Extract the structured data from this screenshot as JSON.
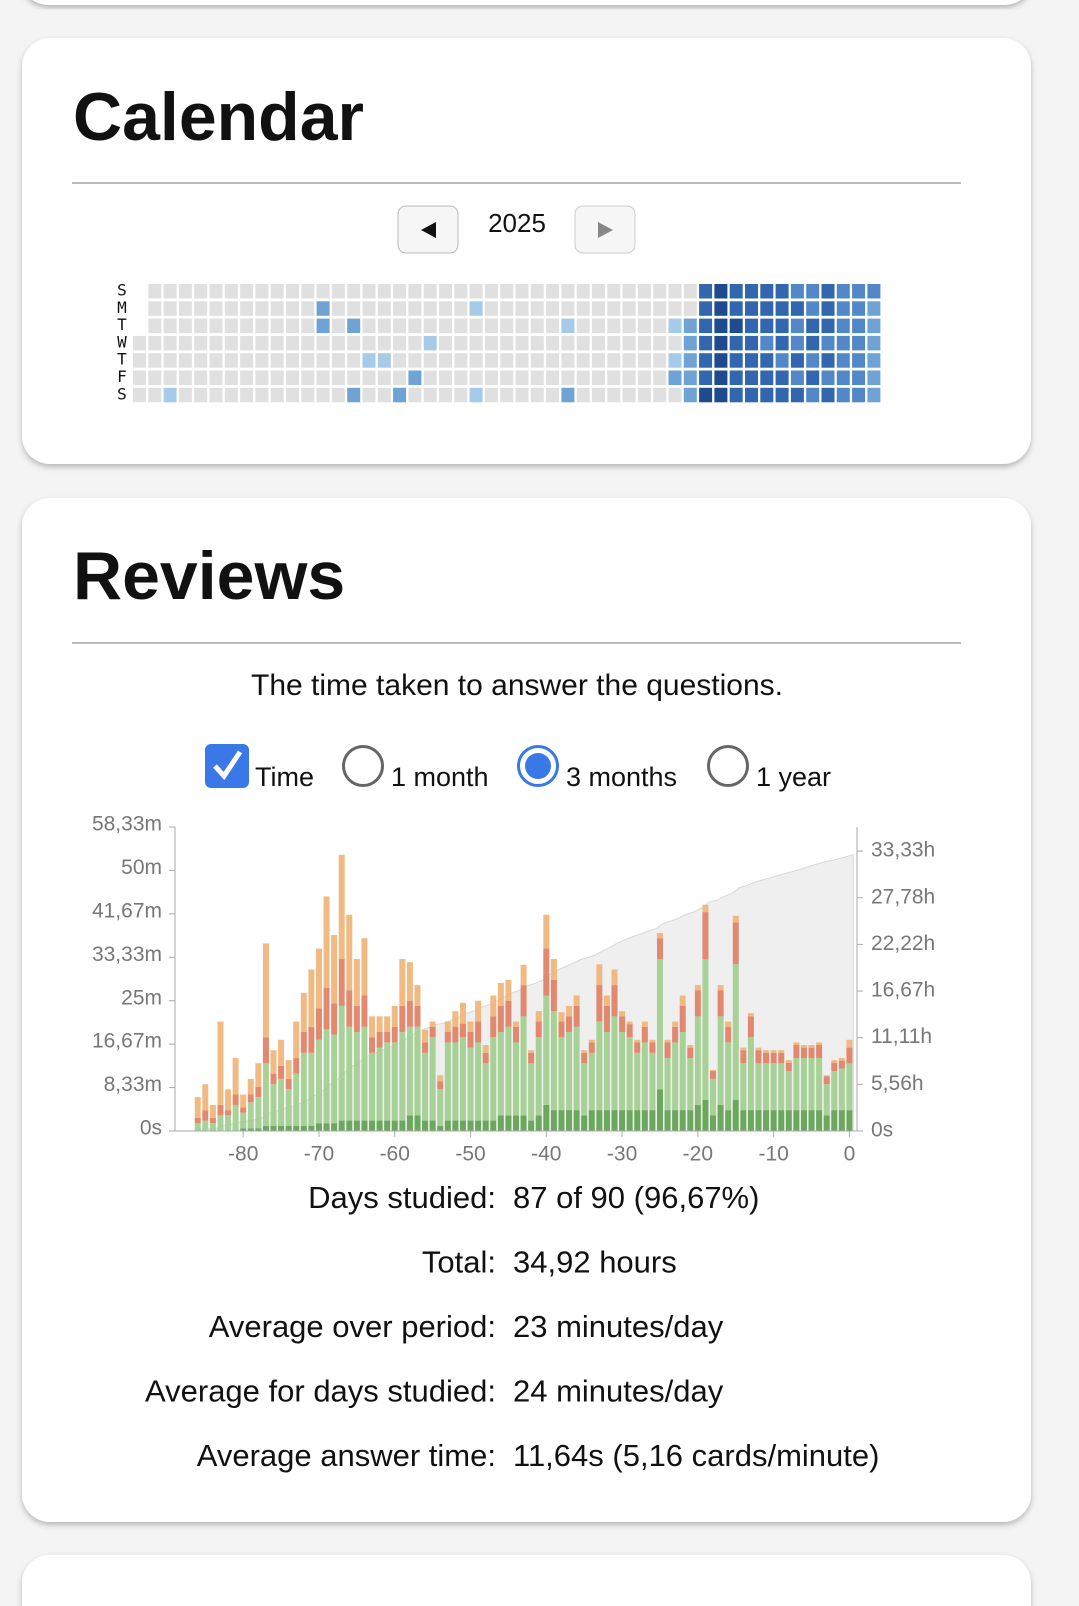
{
  "cards": [
    {
      "title": "Calendar"
    },
    {
      "title": "Reviews",
      "description": "The time taken to answer the questions.",
      "controls": [
        {
          "label": "Time",
          "type": "checkbox",
          "checked": true
        },
        {
          "label": "1 month",
          "type": "radio",
          "checked": false
        },
        {
          "label": "3 months",
          "type": "radio",
          "checked": true
        },
        {
          "label": "1 year",
          "type": "radio",
          "checked": false
        }
      ],
      "stats": [
        [
          "Days studied:",
          "87 of 90 (96,67%)"
        ],
        [
          "Total:",
          "34,92 hours"
        ],
        [
          "Average over period:",
          "23 minutes/day"
        ],
        [
          "Average for days studied:",
          "24 minutes/day"
        ],
        [
          "Average answer time:",
          "11,64s (5,16 cards/minute)"
        ]
      ]
    }
  ],
  "chart_data": [
    {
      "type": "heatmap",
      "year": 2025,
      "row_labels": [
        "S",
        "M",
        "T",
        "W",
        "T",
        "F",
        "S"
      ],
      "colors": [
        "#e0e0e0",
        "#a6cbe8",
        "#6fa3d6",
        "#5288c8",
        "#3266ae",
        "#1e4a8e"
      ],
      "levels": [
        [
          null,
          0,
          0,
          0,
          0,
          0,
          0,
          0,
          0,
          0,
          0,
          0,
          0,
          0,
          0,
          0,
          0,
          0,
          0,
          0,
          0,
          0,
          0,
          0,
          0,
          0,
          0,
          0,
          0,
          0,
          0,
          0,
          0,
          0,
          0,
          0,
          0,
          4,
          5,
          4,
          4,
          4,
          4,
          3,
          3,
          4,
          3,
          3,
          3
        ],
        [
          null,
          0,
          0,
          0,
          0,
          0,
          0,
          0,
          0,
          0,
          0,
          0,
          2,
          0,
          0,
          0,
          0,
          0,
          0,
          0,
          0,
          0,
          1,
          0,
          0,
          0,
          0,
          0,
          0,
          0,
          0,
          0,
          0,
          0,
          0,
          0,
          0,
          4,
          5,
          4,
          4,
          4,
          4,
          4,
          3,
          4,
          3,
          3,
          2
        ],
        [
          null,
          0,
          0,
          0,
          0,
          0,
          0,
          0,
          0,
          0,
          0,
          0,
          2,
          0,
          2,
          0,
          0,
          0,
          0,
          0,
          0,
          0,
          0,
          0,
          0,
          0,
          0,
          0,
          1,
          0,
          0,
          0,
          0,
          0,
          0,
          1,
          2,
          4,
          5,
          5,
          4,
          4,
          4,
          3,
          4,
          4,
          3,
          3,
          2
        ],
        [
          0,
          0,
          0,
          0,
          0,
          0,
          0,
          0,
          0,
          0,
          0,
          0,
          0,
          0,
          0,
          0,
          0,
          0,
          0,
          1,
          0,
          0,
          0,
          0,
          0,
          0,
          0,
          0,
          0,
          0,
          0,
          0,
          0,
          0,
          0,
          0,
          2,
          4,
          5,
          4,
          4,
          3,
          4,
          3,
          4,
          3,
          3,
          3,
          2
        ],
        [
          0,
          0,
          0,
          0,
          0,
          0,
          0,
          0,
          0,
          0,
          0,
          0,
          0,
          0,
          0,
          1,
          1,
          0,
          0,
          0,
          0,
          0,
          0,
          0,
          0,
          0,
          0,
          0,
          0,
          0,
          0,
          0,
          0,
          0,
          0,
          1,
          2,
          4,
          5,
          4,
          4,
          4,
          3,
          4,
          3,
          4,
          3,
          3,
          2
        ],
        [
          0,
          0,
          0,
          0,
          0,
          0,
          0,
          0,
          0,
          0,
          0,
          0,
          0,
          0,
          0,
          0,
          0,
          0,
          2,
          0,
          0,
          0,
          0,
          0,
          0,
          0,
          0,
          0,
          0,
          0,
          0,
          0,
          0,
          0,
          0,
          2,
          2,
          4,
          5,
          4,
          4,
          4,
          4,
          3,
          4,
          3,
          3,
          3,
          2
        ],
        [
          0,
          0,
          1,
          0,
          0,
          0,
          0,
          0,
          0,
          0,
          0,
          0,
          0,
          0,
          2,
          0,
          0,
          2,
          0,
          0,
          0,
          0,
          1,
          0,
          0,
          0,
          0,
          0,
          2,
          0,
          0,
          0,
          0,
          0,
          0,
          0,
          2,
          5,
          5,
          4,
          4,
          4,
          4,
          4,
          3,
          4,
          3,
          3,
          2
        ]
      ]
    },
    {
      "type": "bar",
      "stacked": true,
      "x": [
        -86,
        -85,
        -84,
        -83,
        -82,
        -81,
        -80,
        -79,
        -78,
        -77,
        -76,
        -75,
        -74,
        -73,
        -72,
        -71,
        -70,
        -69,
        -68,
        -67,
        -66,
        -65,
        -64,
        -63,
        -62,
        -61,
        -60,
        -59,
        -58,
        -57,
        -56,
        -55,
        -54,
        -53,
        -52,
        -51,
        -50,
        -49,
        -48,
        -47,
        -46,
        -45,
        -44,
        -43,
        -42,
        -41,
        -40,
        -39,
        -38,
        -37,
        -36,
        -35,
        -34,
        -33,
        -32,
        -31,
        -30,
        -29,
        -28,
        -27,
        -26,
        -25,
        -24,
        -23,
        -22,
        -21,
        -20,
        -19,
        -18,
        -17,
        -16,
        -15,
        -14,
        -13,
        -12,
        -11,
        -10,
        -9,
        -8,
        -7,
        -6,
        -5,
        -4,
        -3,
        -2,
        -1,
        0
      ],
      "xlim": [
        -89,
        1
      ],
      "xticks": [
        -80,
        -70,
        -60,
        -50,
        -40,
        -30,
        -20,
        -10,
        0
      ],
      "ylim": [
        0,
        58.333
      ],
      "yticks": [
        {
          "value": 0,
          "label": "0s"
        },
        {
          "value": 8.333,
          "label": "8,33m"
        },
        {
          "value": 16.667,
          "label": "16,67m"
        },
        {
          "value": 25,
          "label": "25m"
        },
        {
          "value": 33.333,
          "label": "33,33m"
        },
        {
          "value": 41.667,
          "label": "41,67m"
        },
        {
          "value": 50,
          "label": "50m"
        },
        {
          "value": 58.333,
          "label": "58,33m"
        }
      ],
      "y2lim": [
        0,
        36.2
      ],
      "y2ticks": [
        {
          "value": 0,
          "label": "0s"
        },
        {
          "value": 5.556,
          "label": "5,56h"
        },
        {
          "value": 11.111,
          "label": "11,11h"
        },
        {
          "value": 16.667,
          "label": "16,67h"
        },
        {
          "value": 22.222,
          "label": "22,22h"
        },
        {
          "value": 27.778,
          "label": "27,78h"
        },
        {
          "value": 33.333,
          "label": "33,33h"
        }
      ],
      "cumulative_color": "#efefef",
      "series": [
        {
          "color": "#5d9f4e",
          "values": [
            0,
            0,
            0,
            0,
            0,
            0,
            0.5,
            0.5,
            0.5,
            1,
            1,
            1,
            1,
            1,
            1,
            1,
            1.5,
            1.5,
            1.5,
            2,
            2,
            2,
            2,
            2,
            2,
            2,
            2,
            2,
            3,
            3,
            2,
            2,
            1,
            2,
            2,
            2,
            2,
            2,
            2,
            2,
            3,
            3,
            3,
            3,
            2,
            3,
            5,
            4,
            4,
            4,
            4,
            3,
            4,
            4,
            4,
            4,
            4,
            4,
            4,
            4,
            4,
            8,
            4,
            4,
            4,
            4,
            5,
            6,
            3,
            5,
            4,
            6,
            4,
            4,
            4,
            4,
            4,
            4,
            4,
            4,
            4,
            4,
            4,
            3,
            4,
            4,
            4
          ]
        },
        {
          "color": "#9fcd8d",
          "values": [
            1.5,
            2,
            1.5,
            3,
            3,
            5,
            3,
            5,
            6,
            12,
            8,
            9,
            7,
            10,
            14,
            14,
            16,
            18,
            17,
            22,
            18,
            17,
            18,
            13,
            14,
            15,
            15,
            17,
            17,
            17,
            13,
            16,
            7,
            15,
            15,
            16,
            14,
            15,
            11,
            16,
            16,
            17,
            14,
            19,
            11,
            15,
            21,
            19,
            14,
            15,
            16,
            10,
            11,
            17,
            15,
            18,
            15,
            14,
            11,
            13,
            11,
            25,
            10,
            13,
            15,
            10,
            17,
            27,
            7,
            17,
            13,
            26,
            9,
            14,
            9,
            9,
            9,
            9,
            7.5,
            10,
            10,
            10,
            10,
            6,
            7.5,
            8,
            9
          ]
        },
        {
          "color": "#e07c60",
          "values": [
            1,
            2,
            1,
            2,
            1,
            2,
            1,
            1.5,
            2,
            5,
            2,
            2.5,
            2,
            3,
            4,
            5,
            6,
            8,
            6,
            9,
            7,
            5,
            6,
            3,
            3,
            2,
            3,
            5,
            5,
            4,
            2,
            2,
            1.5,
            2,
            3,
            2.6,
            3,
            4,
            2,
            4,
            5,
            5,
            3,
            6,
            2,
            3,
            9,
            6,
            3,
            3,
            4,
            2,
            2,
            7,
            5,
            6,
            3,
            2.5,
            2,
            3,
            2,
            4,
            3,
            3,
            5,
            2,
            5,
            9,
            1.5,
            5,
            3,
            8,
            2.5,
            4,
            2.5,
            2,
            2,
            2,
            1.6,
            2.5,
            2,
            2,
            2.5,
            1.5,
            1.6,
            1.5,
            3
          ]
        },
        {
          "color": "#f0b276",
          "values": [
            4,
            5,
            2.5,
            16,
            4,
            7,
            2.5,
            3,
            4.5,
            18,
            4.5,
            5,
            3.6,
            7,
            7.5,
            11,
            11.5,
            17.5,
            13.1,
            20,
            14.5,
            9,
            11,
            4,
            3,
            3,
            4,
            9,
            7.4,
            4,
            2.4,
            1,
            1.2,
            2,
            3,
            4,
            2,
            4,
            1.5,
            4,
            4.4,
            4,
            1,
            3.9,
            0.5,
            2,
            6.5,
            4,
            1.8,
            2,
            2,
            0.5,
            0.5,
            4,
            2,
            3,
            1,
            0.5,
            0.5,
            1,
            0.5,
            1,
            0.5,
            1,
            2,
            0.5,
            1,
            1.4,
            0.2,
            1,
            1,
            1.3,
            0.5,
            0.6,
            0.5,
            0.5,
            0.5,
            0.5,
            0.5,
            0.5,
            0.5,
            0.5,
            0.5,
            0.2,
            0.5,
            0.5,
            1.5
          ]
        }
      ]
    }
  ]
}
